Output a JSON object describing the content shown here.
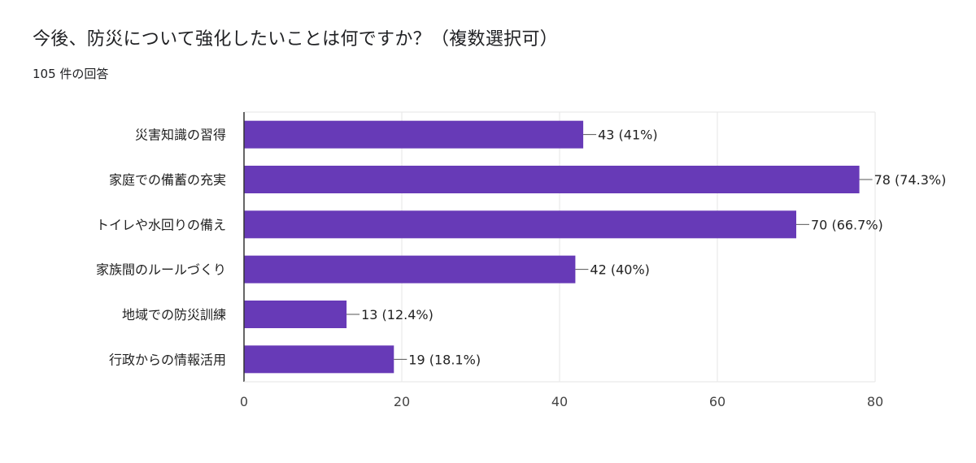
{
  "title": "今後、防災について強化したいことは何ですか？（複数選択可）",
  "response_count": "105 件の回答",
  "colors": {
    "bar": "#673ab7",
    "grid": "#e6e6e6",
    "axis": "#333333"
  },
  "chart_data": {
    "type": "bar",
    "orientation": "horizontal",
    "categories": [
      "災害知識の習得",
      "家庭での備蓄の充実",
      "トイレや水回りの備え",
      "家族間のルールづくり",
      "地域での防災訓練",
      "行政からの情報活用"
    ],
    "values": [
      43,
      78,
      70,
      42,
      13,
      19
    ],
    "data_labels": [
      "43 (41%)",
      "78 (74.3%)",
      "70 (66.7%)",
      "42 (40%)",
      "13 (12.4%)",
      "19 (18.1%)"
    ],
    "xlim": [
      0,
      80
    ],
    "xticks": [
      "0",
      "20",
      "40",
      "60",
      "80"
    ],
    "grid": true,
    "legend": "none"
  }
}
